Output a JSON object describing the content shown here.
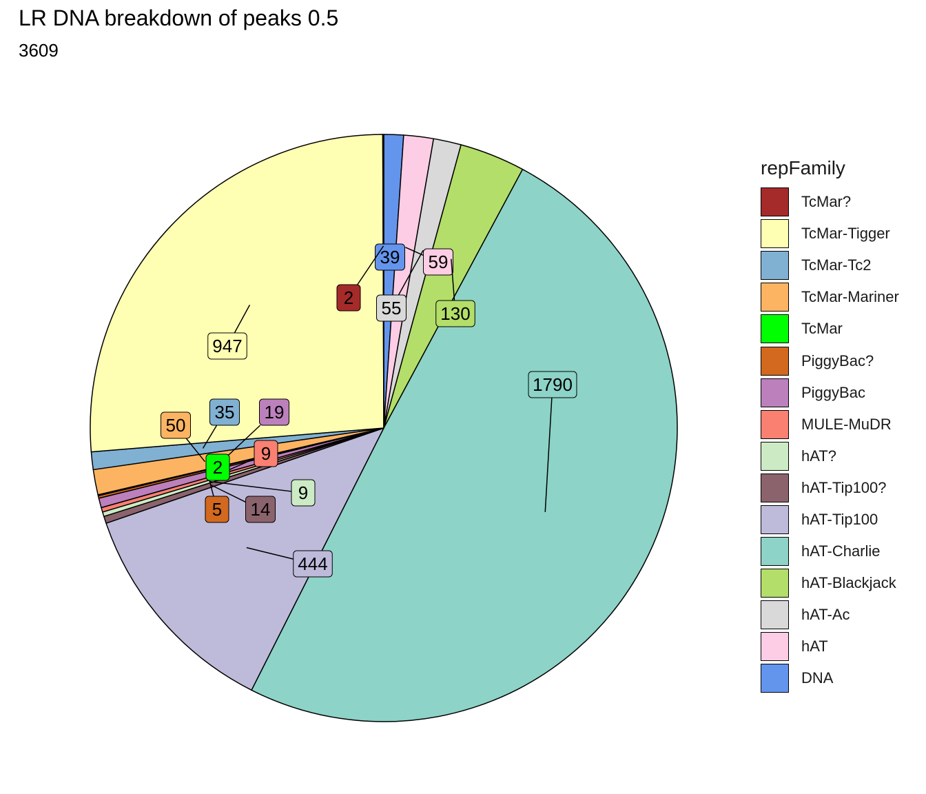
{
  "chart_data": {
    "type": "pie",
    "title": "LR DNA breakdown of peaks 0.5",
    "subtitle": "3609",
    "legend_title": "repFamily",
    "legend_position": "right",
    "slices": [
      {
        "label": "DNA",
        "value": 39,
        "color": "#6495ED"
      },
      {
        "label": "hAT",
        "value": 59,
        "color": "#FCCDE5"
      },
      {
        "label": "hAT-Ac",
        "value": 55,
        "color": "#D9D9D9"
      },
      {
        "label": "hAT-Blackjack",
        "value": 130,
        "color": "#B3DE69"
      },
      {
        "label": "hAT-Charlie",
        "value": 1790,
        "color": "#8DD3C7"
      },
      {
        "label": "hAT-Tip100",
        "value": 444,
        "color": "#BEBADA"
      },
      {
        "label": "hAT-Tip100?",
        "value": 14,
        "color": "#8B636C"
      },
      {
        "label": "hAT?",
        "value": 9,
        "color": "#CCEBC5"
      },
      {
        "label": "MULE-MuDR",
        "value": 9,
        "color": "#FA8072"
      },
      {
        "label": "PiggyBac",
        "value": 19,
        "color": "#BC80BD"
      },
      {
        "label": "PiggyBac?",
        "value": 5,
        "color": "#D2691E"
      },
      {
        "label": "TcMar",
        "value": 2,
        "color": "#00FF00"
      },
      {
        "label": "TcMar-Mariner",
        "value": 50,
        "color": "#FDB462"
      },
      {
        "label": "TcMar-Tc2",
        "value": 35,
        "color": "#80B1D3"
      },
      {
        "label": "TcMar-Tigger",
        "value": 947,
        "color": "#FFFFB3"
      },
      {
        "label": "TcMar?",
        "value": 2,
        "color": "#A52A2A"
      }
    ],
    "legend_order": [
      "TcMar?",
      "TcMar-Tigger",
      "TcMar-Tc2",
      "TcMar-Mariner",
      "TcMar",
      "PiggyBac?",
      "PiggyBac",
      "MULE-MuDR",
      "hAT?",
      "hAT-Tip100?",
      "hAT-Tip100",
      "hAT-Charlie",
      "hAT-Blackjack",
      "hAT-Ac",
      "hAT",
      "DNA"
    ]
  }
}
